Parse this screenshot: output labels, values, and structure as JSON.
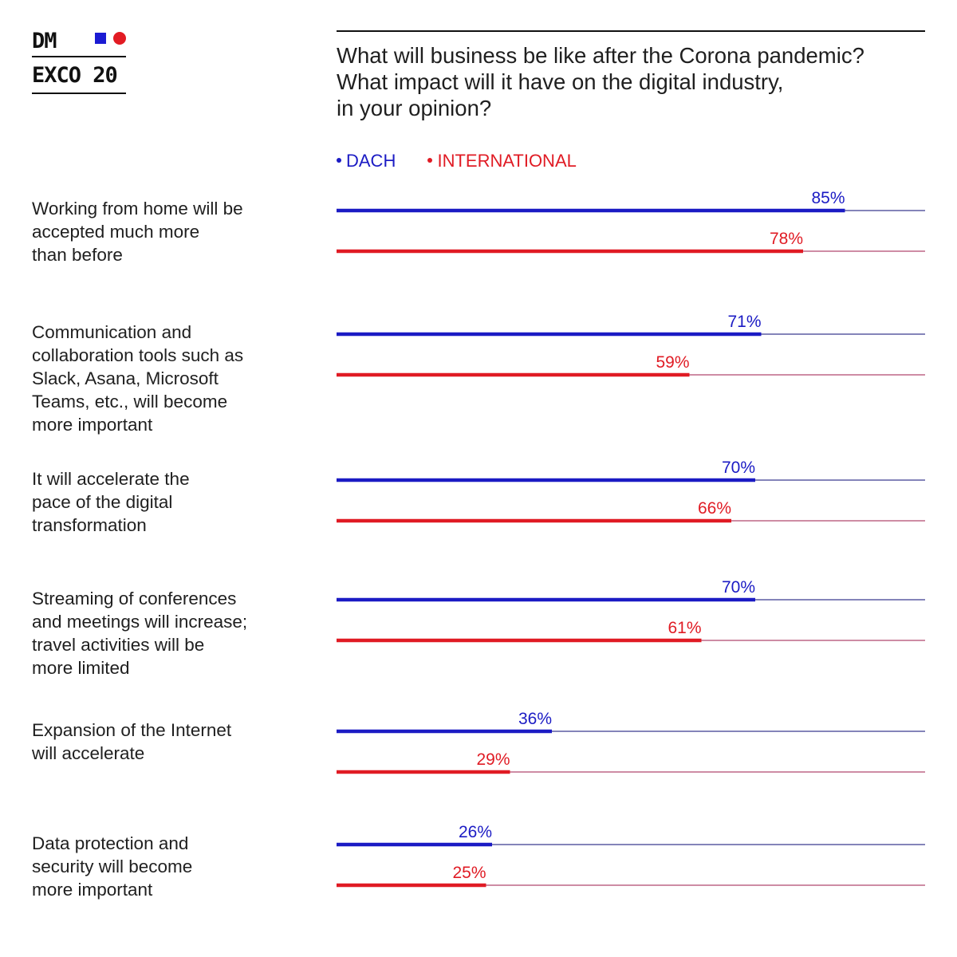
{
  "logo": {
    "line1": "DM",
    "line2": "EXCO 20",
    "square_color": "#1b1bd3",
    "circle_color": "#e21b23"
  },
  "title": {
    "line1": "What will business be like after the Corona pandemic?",
    "line2": "What impact will it have on the digital industry,",
    "line3": "in your opinion?"
  },
  "legend": {
    "dach": "DACH",
    "international": "INTERNATIONAL"
  },
  "colors": {
    "dach": "#1b1bc4",
    "dach_track": "#3a3a8f",
    "international": "#e01b24",
    "international_track": "#b0476e"
  },
  "rows": [
    {
      "label_lines": [
        "Working from home will be",
        "accepted much more",
        "than before"
      ]
    },
    {
      "label_lines": [
        "Communication and",
        "collaboration tools such as",
        "Slack, Asana, Microsoft",
        "Teams, etc., will become",
        "more important"
      ]
    },
    {
      "label_lines": [
        "It will accelerate the",
        "pace of the digital",
        "transformation"
      ]
    },
    {
      "label_lines": [
        "Streaming of conferences",
        "and meetings will increase;",
        "travel activities will be",
        "more limited"
      ]
    },
    {
      "label_lines": [
        "Expansion of the Internet",
        "will accelerate"
      ]
    },
    {
      "label_lines": [
        "Data protection and",
        "security will become",
        "more important"
      ]
    }
  ],
  "chart_data": {
    "type": "bar",
    "orientation": "horizontal",
    "title": "What will business be like after the Corona pandemic? What impact will it have on the digital industry, in your opinion?",
    "categories": [
      "Working from home will be accepted much more than before",
      "Communication and collaboration tools such as Slack, Asana, Microsoft Teams, etc., will become more important",
      "It will accelerate the pace of the digital transformation",
      "Streaming of conferences and meetings will increase; travel activities will be more limited",
      "Expansion of the Internet will accelerate",
      "Data protection and security will become more important"
    ],
    "series": [
      {
        "name": "DACH",
        "values": [
          85,
          71,
          70,
          70,
          36,
          26
        ],
        "labels": [
          "85%",
          "71%",
          "70%",
          "70%",
          "36%",
          "26%"
        ]
      },
      {
        "name": "INTERNATIONAL",
        "values": [
          78,
          59,
          66,
          61,
          29,
          25
        ],
        "labels": [
          "78%",
          "59%",
          "66%",
          "61%",
          "29%",
          "25%"
        ]
      }
    ],
    "xlim": [
      0,
      100
    ],
    "unit": "%",
    "legend": "top-left"
  }
}
